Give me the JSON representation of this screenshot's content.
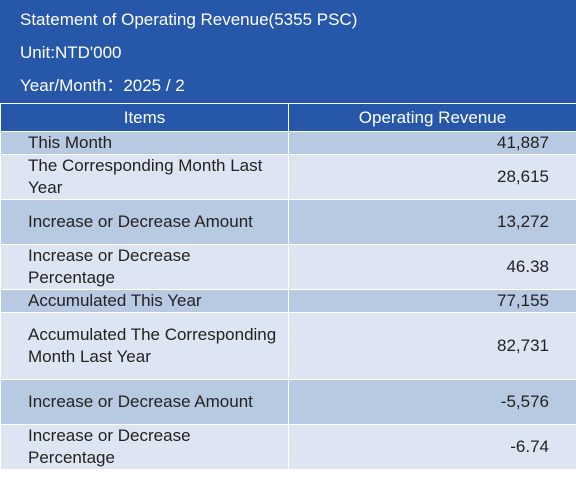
{
  "header": {
    "title": "Statement of Operating Revenue(5355 PSC)",
    "unit": "Unit:NTD'000",
    "period": "Year/Month：2025 / 2"
  },
  "table": {
    "columns": [
      "Items",
      "Operating Revenue"
    ],
    "rows": [
      {
        "item": "This Month",
        "value": "41,887"
      },
      {
        "item": "The Corresponding Month Last Year",
        "value": "28,615"
      },
      {
        "item": "Increase or Decrease Amount",
        "value": "13,272"
      },
      {
        "item": "Increase or Decrease Percentage",
        "value": "46.38"
      },
      {
        "item": "Accumulated This Year",
        "value": "77,155"
      },
      {
        "item": "Accumulated The Corresponding Month Last Year",
        "value": "82,731"
      },
      {
        "item": "Increase or Decrease Amount",
        "value": "-5,576"
      },
      {
        "item": "Increase or Decrease Percentage",
        "value": "-6.74"
      }
    ]
  },
  "colors": {
    "header_bg": "#2657a8",
    "row_dark": "#b8c9e2",
    "row_light": "#dce5f1"
  }
}
